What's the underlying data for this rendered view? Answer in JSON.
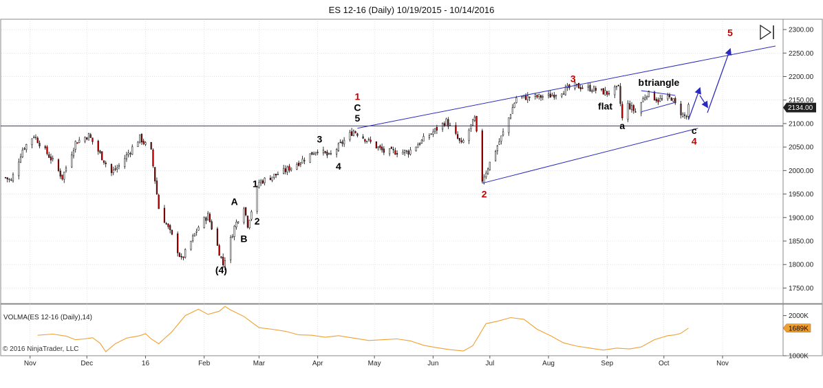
{
  "chart_data": {
    "type": "candlestick",
    "title": "ES 12-16 (Daily)  10/19/2015 - 10/14/2016",
    "instrument": "ES 12-16 (Daily)",
    "date_range": [
      "2015-10-19",
      "2016-10-14"
    ],
    "last_price": 2134.0,
    "last_price_label": "2134.00",
    "y_axis": {
      "ylim": [
        1717,
        2322
      ],
      "ticks": [
        1750,
        1800,
        1850,
        1900,
        1950,
        2000,
        2050,
        2100,
        2150,
        2200,
        2250,
        2300
      ],
      "tick_labels": [
        "1750.00",
        "1800.00",
        "1850.00",
        "1900.00",
        "1950.00",
        "2000.00",
        "2050.00",
        "2100.00",
        "2150.00",
        "2200.00",
        "2250.00",
        "2300.00"
      ],
      "side": "right"
    },
    "x_axis": {
      "xlim": [
        "2015-10-19",
        "2016-11-29"
      ],
      "ticks": [
        "2015-11-01",
        "2015-12-01",
        "2016-01-01",
        "2016-02-01",
        "2016-03-01",
        "2016-04-01",
        "2016-05-01",
        "2016-06-01",
        "2016-07-01",
        "2016-08-01",
        "2016-09-01",
        "2016-10-01",
        "2016-11-01"
      ],
      "tick_labels": [
        "Nov",
        "Dec",
        "16",
        "Feb",
        "Mar",
        "Apr",
        "May",
        "Jun",
        "Jul",
        "Aug",
        "Sep",
        "Oct",
        "Nov"
      ]
    },
    "price_keypoints": [
      [
        "2015-10-19",
        1985
      ],
      [
        "2015-10-22",
        1978
      ],
      [
        "2015-10-28",
        2045
      ],
      [
        "2015-11-03",
        2075
      ],
      [
        "2015-11-13",
        2020
      ],
      [
        "2015-11-18",
        1985
      ],
      [
        "2015-11-25",
        2060
      ],
      [
        "2015-12-02",
        2075
      ],
      [
        "2015-12-14",
        1995
      ],
      [
        "2015-12-18",
        2010
      ],
      [
        "2015-12-29",
        2070
      ],
      [
        "2016-01-04",
        2040
      ],
      [
        "2016-01-08",
        1920
      ],
      [
        "2016-01-15",
        1860
      ],
      [
        "2016-01-20",
        1810
      ],
      [
        "2016-01-29",
        1880
      ],
      [
        "2016-02-03",
        1905
      ],
      [
        "2016-02-11",
        1800
      ],
      [
        "2016-02-17",
        1880
      ],
      [
        "2016-02-22",
        1925
      ],
      [
        "2016-02-24",
        1885
      ],
      [
        "2016-03-01",
        1975
      ],
      [
        "2016-03-15",
        2000
      ],
      [
        "2016-03-23",
        2020
      ],
      [
        "2016-04-01",
        2045
      ],
      [
        "2016-04-07",
        2030
      ],
      [
        "2016-04-20",
        2085
      ],
      [
        "2016-05-06",
        2040
      ],
      [
        "2016-05-19",
        2040
      ],
      [
        "2016-06-08",
        2105
      ],
      [
        "2016-06-16",
        2055
      ],
      [
        "2016-06-23",
        2110
      ],
      [
        "2016-06-27",
        1980
      ],
      [
        "2016-07-08",
        2080
      ],
      [
        "2016-07-15",
        2155
      ],
      [
        "2016-08-01",
        2158
      ],
      [
        "2016-08-15",
        2180
      ],
      [
        "2016-08-23",
        2175
      ],
      [
        "2016-09-01",
        2165
      ],
      [
        "2016-09-07",
        2175
      ],
      [
        "2016-09-09",
        2110
      ],
      [
        "2016-09-12",
        2140
      ],
      [
        "2016-09-16",
        2125
      ],
      [
        "2016-09-22",
        2165
      ],
      [
        "2016-09-28",
        2150
      ],
      [
        "2016-10-05",
        2155
      ],
      [
        "2016-10-07",
        2140
      ],
      [
        "2016-10-11",
        2118
      ],
      [
        "2016-10-13",
        2115
      ],
      [
        "2016-10-14",
        2134
      ]
    ],
    "horizontal_lines": [
      {
        "y": 2095,
        "color": "#2a2ac0"
      }
    ],
    "trendlines": [
      {
        "from": [
          "2016-04-22",
          2090
        ],
        "to": [
          "2016-11-29",
          2265
        ],
        "color": "#2a2ac0"
      },
      {
        "from": [
          "2016-06-27",
          1973
        ],
        "to": [
          "2016-10-19",
          2090
        ],
        "color": "#2a2ac0"
      },
      {
        "from": [
          "2016-09-19",
          2170
        ],
        "to": [
          "2016-10-07",
          2160
        ],
        "color": "#2a2ac0"
      },
      {
        "from": [
          "2016-09-19",
          2125
        ],
        "to": [
          "2016-10-07",
          2145
        ],
        "color": "#2a2ac0"
      }
    ],
    "projection_arrows": [
      {
        "from": [
          "2016-10-14",
          2108
        ],
        "to": [
          "2016-10-20",
          2175
        ]
      },
      {
        "from": [
          "2016-10-20",
          2160
        ],
        "to": [
          "2016-10-24",
          2135
        ]
      },
      {
        "from": [
          "2016-10-24",
          2123
        ],
        "to": [
          "2016-11-05",
          2258
        ]
      }
    ],
    "wave_labels": [
      {
        "text": "(4)",
        "date": "2016-02-10",
        "price": 1781,
        "color": "#000000"
      },
      {
        "text": "A",
        "date": "2016-02-17",
        "price": 1927,
        "color": "#000000"
      },
      {
        "text": "B",
        "date": "2016-02-22",
        "price": 1848,
        "color": "#000000"
      },
      {
        "text": "1",
        "date": "2016-02-28",
        "price": 1965,
        "color": "#000000"
      },
      {
        "text": "2",
        "date": "2016-02-29",
        "price": 1885,
        "color": "#000000"
      },
      {
        "text": "3",
        "date": "2016-04-02",
        "price": 2060,
        "color": "#000000"
      },
      {
        "text": "4",
        "date": "2016-04-12",
        "price": 2002,
        "color": "#000000"
      },
      {
        "text": "1",
        "date": "2016-04-22",
        "price": 2150,
        "color": "#c00000"
      },
      {
        "text": "C",
        "date": "2016-04-22",
        "price": 2127,
        "color": "#000000"
      },
      {
        "text": "5",
        "date": "2016-04-22",
        "price": 2104,
        "color": "#000000"
      },
      {
        "text": "2",
        "date": "2016-06-28",
        "price": 1943,
        "color": "#c00000"
      },
      {
        "text": "3",
        "date": "2016-08-14",
        "price": 2188,
        "color": "#c00000"
      },
      {
        "text": "flat",
        "date": "2016-08-31",
        "price": 2130,
        "color": "#000000"
      },
      {
        "text": "a",
        "date": "2016-09-09",
        "price": 2088,
        "color": "#000000"
      },
      {
        "text": "b",
        "date": "2016-09-19",
        "price": 2180,
        "color": "#000000"
      },
      {
        "text": "triangle",
        "date": "2016-09-30",
        "price": 2180,
        "color": "#000000"
      },
      {
        "text": "c",
        "date": "2016-10-17",
        "price": 2078,
        "color": "#000000"
      },
      {
        "text": "4",
        "date": "2016-10-17",
        "price": 2055,
        "color": "#c00000"
      },
      {
        "text": "5",
        "date": "2016-11-05",
        "price": 2286,
        "color": "#c00000"
      }
    ],
    "indicator": {
      "label": "VOLMA(ES 12-16 (Daily),14)",
      "last_value_label": "1689K",
      "ylim": [
        1000,
        2250
      ],
      "ticks": [
        1000,
        2000
      ],
      "tick_labels": [
        "1000K",
        "2000K"
      ],
      "unit": "K",
      "color": "#f0a030",
      "keypoints": [
        [
          "2015-11-05",
          1510
        ],
        [
          "2015-11-13",
          1540
        ],
        [
          "2015-11-20",
          1490
        ],
        [
          "2015-11-25",
          1400
        ],
        [
          "2015-11-30",
          1420
        ],
        [
          "2015-12-04",
          1450
        ],
        [
          "2015-12-08",
          1310
        ],
        [
          "2015-12-11",
          1100
        ],
        [
          "2015-12-16",
          1300
        ],
        [
          "2015-12-22",
          1440
        ],
        [
          "2015-12-29",
          1500
        ],
        [
          "2016-01-01",
          1550
        ],
        [
          "2016-01-04",
          1420
        ],
        [
          "2016-01-08",
          1300
        ],
        [
          "2016-01-15",
          1600
        ],
        [
          "2016-01-22",
          2000
        ],
        [
          "2016-01-29",
          2160
        ],
        [
          "2016-02-03",
          2030
        ],
        [
          "2016-02-09",
          2110
        ],
        [
          "2016-02-12",
          2230
        ],
        [
          "2016-02-15",
          2140
        ],
        [
          "2016-02-22",
          1980
        ],
        [
          "2016-03-01",
          1700
        ],
        [
          "2016-03-08",
          1660
        ],
        [
          "2016-03-15",
          1610
        ],
        [
          "2016-03-22",
          1520
        ],
        [
          "2016-03-29",
          1510
        ],
        [
          "2016-04-05",
          1460
        ],
        [
          "2016-04-12",
          1500
        ],
        [
          "2016-04-20",
          1440
        ],
        [
          "2016-04-28",
          1380
        ],
        [
          "2016-05-06",
          1400
        ],
        [
          "2016-05-13",
          1420
        ],
        [
          "2016-05-20",
          1370
        ],
        [
          "2016-05-27",
          1260
        ],
        [
          "2016-06-03",
          1200
        ],
        [
          "2016-06-10",
          1150
        ],
        [
          "2016-06-17",
          1120
        ],
        [
          "2016-06-22",
          1250
        ],
        [
          "2016-06-29",
          1800
        ],
        [
          "2016-07-05",
          1860
        ],
        [
          "2016-07-12",
          1950
        ],
        [
          "2016-07-19",
          1910
        ],
        [
          "2016-07-26",
          1660
        ],
        [
          "2016-08-02",
          1500
        ],
        [
          "2016-08-09",
          1320
        ],
        [
          "2016-08-16",
          1240
        ],
        [
          "2016-08-23",
          1190
        ],
        [
          "2016-08-30",
          1140
        ],
        [
          "2016-09-06",
          1190
        ],
        [
          "2016-09-13",
          1170
        ],
        [
          "2016-09-19",
          1220
        ],
        [
          "2016-09-26",
          1400
        ],
        [
          "2016-10-03",
          1500
        ],
        [
          "2016-10-07",
          1520
        ],
        [
          "2016-10-10",
          1560
        ],
        [
          "2016-10-14",
          1689
        ]
      ]
    },
    "grid": true
  },
  "copyright": "© 2016 NinjaTrader, LLC",
  "colors": {
    "up_candle": "#ffffff",
    "down_candle": "#c00000",
    "candle_outline": "#000000",
    "trendline": "#2a2ac0",
    "wave_red": "#c00000",
    "volma": "#f0a030",
    "grid": "#d0d0d0"
  }
}
